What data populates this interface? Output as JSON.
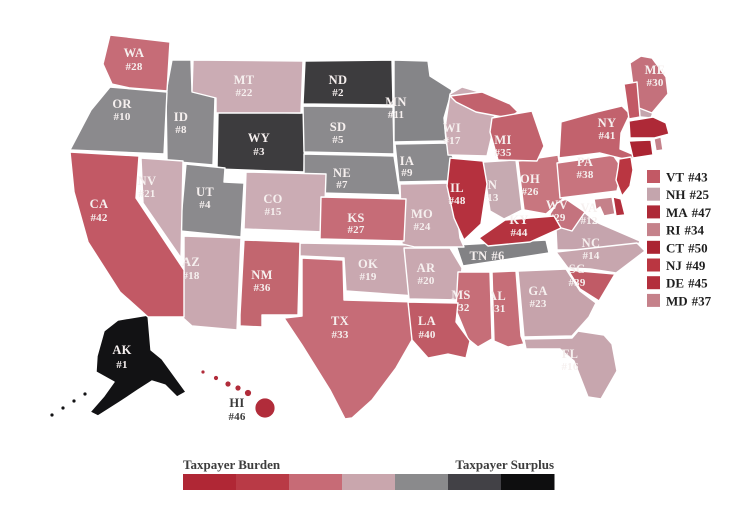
{
  "map": {
    "label_color": "#f6f0ef",
    "dark_label_color": "#3a3a3a",
    "states": [
      {
        "abbr": "AK",
        "rank": "#1",
        "color": "#121214"
      },
      {
        "abbr": "ND",
        "rank": "#2",
        "color": "#3d3c3e"
      },
      {
        "abbr": "WY",
        "rank": "#3",
        "color": "#3d3c3e"
      },
      {
        "abbr": "UT",
        "rank": "#4",
        "color": "#8b8a8d"
      },
      {
        "abbr": "SD",
        "rank": "#5",
        "color": "#8b8a8d"
      },
      {
        "abbr": "TN",
        "rank": "#6",
        "color": "#828285"
      },
      {
        "abbr": "NE",
        "rank": "#7",
        "color": "#8b8a8d"
      },
      {
        "abbr": "ID",
        "rank": "#8",
        "color": "#8b8a8d"
      },
      {
        "abbr": "IA",
        "rank": "#9",
        "color": "#8b8a8d"
      },
      {
        "abbr": "OR",
        "rank": "#10",
        "color": "#8b8a8d"
      },
      {
        "abbr": "MN",
        "rank": "#11",
        "color": "#858588"
      },
      {
        "abbr": "VA",
        "rank": "#12",
        "color": "#c5a4ad"
      },
      {
        "abbr": "IN",
        "rank": "#13",
        "color": "#c6aab1"
      },
      {
        "abbr": "NC",
        "rank": "#14",
        "color": "#c7a6ae"
      },
      {
        "abbr": "CO",
        "rank": "#15",
        "color": "#cbacb4"
      },
      {
        "abbr": "FL",
        "rank": "#16",
        "color": "#c7a6ae"
      },
      {
        "abbr": "WI",
        "rank": "#17",
        "color": "#cbacb4"
      },
      {
        "abbr": "AZ",
        "rank": "#18",
        "color": "#c9a8b0"
      },
      {
        "abbr": "OK",
        "rank": "#19",
        "color": "#c9a8b0"
      },
      {
        "abbr": "AR",
        "rank": "#20",
        "color": "#c9a8b0"
      },
      {
        "abbr": "NV",
        "rank": "#21",
        "color": "#cbacb4"
      },
      {
        "abbr": "MT",
        "rank": "#22",
        "color": "#cbacb4"
      },
      {
        "abbr": "GA",
        "rank": "#23",
        "color": "#c6a3ab"
      },
      {
        "abbr": "MO",
        "rank": "#24",
        "color": "#c9a8b0"
      },
      {
        "abbr": "NH",
        "rank": "#25",
        "color": "#c4a5ad"
      },
      {
        "abbr": "OH",
        "rank": "#26",
        "color": "#c8767f"
      },
      {
        "abbr": "KS",
        "rank": "#27",
        "color": "#c66c77"
      },
      {
        "abbr": "WA",
        "rank": "#28",
        "color": "#c66c77"
      },
      {
        "abbr": "WV",
        "rank": "#29",
        "color": "#c4737e"
      },
      {
        "abbr": "ME",
        "rank": "#30",
        "color": "#c4717c"
      },
      {
        "abbr": "AL",
        "rank": "#31",
        "color": "#c66e78"
      },
      {
        "abbr": "MS",
        "rank": "#32",
        "color": "#c66e78"
      },
      {
        "abbr": "TX",
        "rank": "#33",
        "color": "#c66c77"
      },
      {
        "abbr": "RI",
        "rank": "#34",
        "color": "#c5828b"
      },
      {
        "abbr": "MI",
        "rank": "#35",
        "color": "#c2626d"
      },
      {
        "abbr": "NM",
        "rank": "#36",
        "color": "#c2666f"
      },
      {
        "abbr": "MD",
        "rank": "#37",
        "color": "#c5818a"
      },
      {
        "abbr": "PA",
        "rank": "#38",
        "color": "#c8747e"
      },
      {
        "abbr": "SC",
        "rank": "#39",
        "color": "#c05b66"
      },
      {
        "abbr": "LA",
        "rank": "#40",
        "color": "#c05b66"
      },
      {
        "abbr": "NY",
        "rank": "#41",
        "color": "#c2626d"
      },
      {
        "abbr": "CA",
        "rank": "#42",
        "color": "#c25965"
      },
      {
        "abbr": "VT",
        "rank": "#43",
        "color": "#c25965"
      },
      {
        "abbr": "KY",
        "rank": "#44",
        "color": "#b5333f"
      },
      {
        "abbr": "DE",
        "rank": "#45",
        "color": "#b32f3d"
      },
      {
        "abbr": "HI",
        "rank": "#46",
        "color": "#b12c3a"
      },
      {
        "abbr": "MA",
        "rank": "#47",
        "color": "#ae2937"
      },
      {
        "abbr": "IL",
        "rank": "#48",
        "color": "#b5313e"
      },
      {
        "abbr": "NJ",
        "rank": "#49",
        "color": "#ba3641"
      },
      {
        "abbr": "CT",
        "rank": "#50",
        "color": "#ab2432"
      }
    ]
  },
  "small_states_panel": {
    "order": [
      "VT",
      "NH",
      "MA",
      "RI",
      "CT",
      "NJ",
      "DE",
      "MD"
    ]
  },
  "legend": {
    "left_label": "Taxpayer Burden",
    "right_label": "Taxpayer Surplus",
    "colors": [
      "#b02735",
      "#b93a46",
      "#c76b76",
      "#c9a6ad",
      "#8a8a8c",
      "#424146",
      "#0e0e0f"
    ]
  }
}
